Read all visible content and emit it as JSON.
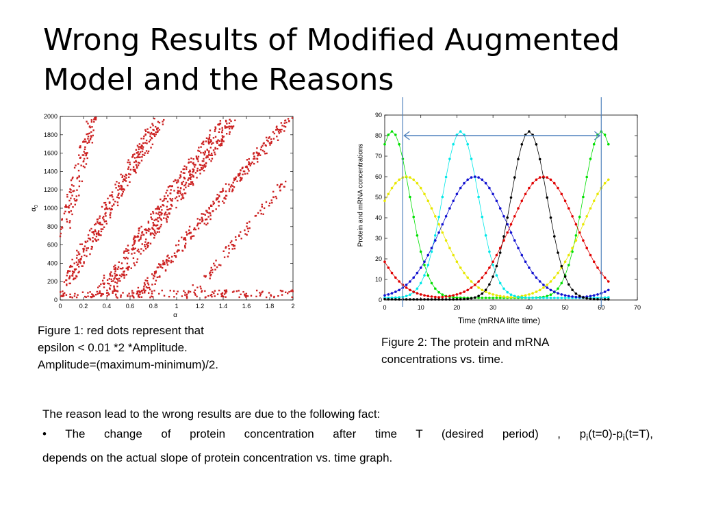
{
  "slide": {
    "title": "Wrong Results of Modified Augmented Model and the Reasons",
    "figure1_caption": [
      "Figure 1:  red dots represent that",
      "epsilon < 0.01 *2 *Amplitude.",
      "Amplitude=(maximum-minimum)/2."
    ],
    "figure2_caption": [
      "Figure 2: The  protein and mRNA",
      "concentrations vs. time."
    ],
    "reason_intro": "The reason lead to the wrong results are due to the following fact:",
    "reason_bullet_pre": "• The change of protein concentration after time T (desired period) , p",
    "reason_sub1": "i",
    "reason_mid": "(t=0)-p",
    "reason_sub2": "i",
    "reason_post": "(t=T),",
    "reason_line2": "depends on the actual slope of protein concentration vs. time graph."
  },
  "chart_data": [
    {
      "type": "scatter",
      "xlabel": "α",
      "ylabel": "α",
      "ylabel_subscript": "0",
      "xlim": [
        0,
        2
      ],
      "ylim": [
        0,
        2000
      ],
      "xticks": [
        "0",
        "0.2",
        "0.4",
        "0.6",
        "0.8",
        "1",
        "1.2",
        "1.4",
        "1.6",
        "1.8",
        "2"
      ],
      "yticks": [
        "0",
        "200",
        "400",
        "600",
        "800",
        "1000",
        "1200",
        "1400",
        "1600",
        "1800",
        "2000"
      ],
      "grid": false,
      "point_color": "#cc2020",
      "bands": [
        {
          "from": [
            0.02,
            700
          ],
          "to": [
            0.28,
            1980
          ],
          "spread": 0.05,
          "count": 130
        },
        {
          "from": [
            0.05,
            180
          ],
          "to": [
            0.85,
            1960
          ],
          "spread": 0.06,
          "count": 330
        },
        {
          "from": [
            0.35,
            40
          ],
          "to": [
            1.45,
            1960
          ],
          "spread": 0.09,
          "count": 520
        },
        {
          "from": [
            0.65,
            20
          ],
          "to": [
            1.97,
            1980
          ],
          "spread": 0.05,
          "count": 300
        },
        {
          "from": [
            0.0,
            60
          ],
          "to": [
            2.0,
            70
          ],
          "spread": 0.0,
          "count": 160
        },
        {
          "from": [
            1.1,
            20
          ],
          "to": [
            1.95,
            1300
          ],
          "spread": 0.04,
          "count": 90
        }
      ]
    },
    {
      "type": "line",
      "xlabel": "Time (mRNA lifte time)",
      "ylabel": "Protein and mRNA concentrations",
      "xlim": [
        0,
        70
      ],
      "ylim": [
        0,
        90
      ],
      "xticks": [
        "0",
        "10",
        "20",
        "30",
        "40",
        "50",
        "60",
        "70"
      ],
      "yticks": [
        "0",
        "10",
        "20",
        "30",
        "40",
        "50",
        "60",
        "70",
        "80",
        "90"
      ],
      "grid": false,
      "period_marker": {
        "t_start": 5,
        "t_end": 60,
        "color": "#4f81bd"
      },
      "series": [
        {
          "color": "#00e000",
          "peak": 82,
          "peak_t": 2,
          "base": 1,
          "width": 5,
          "period": 58
        },
        {
          "color": "#e8e800",
          "peak": 60,
          "peak_t": 6,
          "base": 1,
          "width": 9,
          "period": 58
        },
        {
          "color": "#00e8e8",
          "peak": 82,
          "peak_t": 21,
          "base": 1,
          "width": 5,
          "period": 58
        },
        {
          "color": "#1010d0",
          "peak": 60,
          "peak_t": 25,
          "base": 1,
          "width": 9,
          "period": 58
        },
        {
          "color": "#000000",
          "peak": 82,
          "peak_t": 40,
          "base": 0.3,
          "width": 5,
          "period": 58
        },
        {
          "color": "#e00000",
          "peak": 60,
          "peak_t": 44,
          "base": 1,
          "width": 9,
          "period": 58
        }
      ]
    }
  ]
}
